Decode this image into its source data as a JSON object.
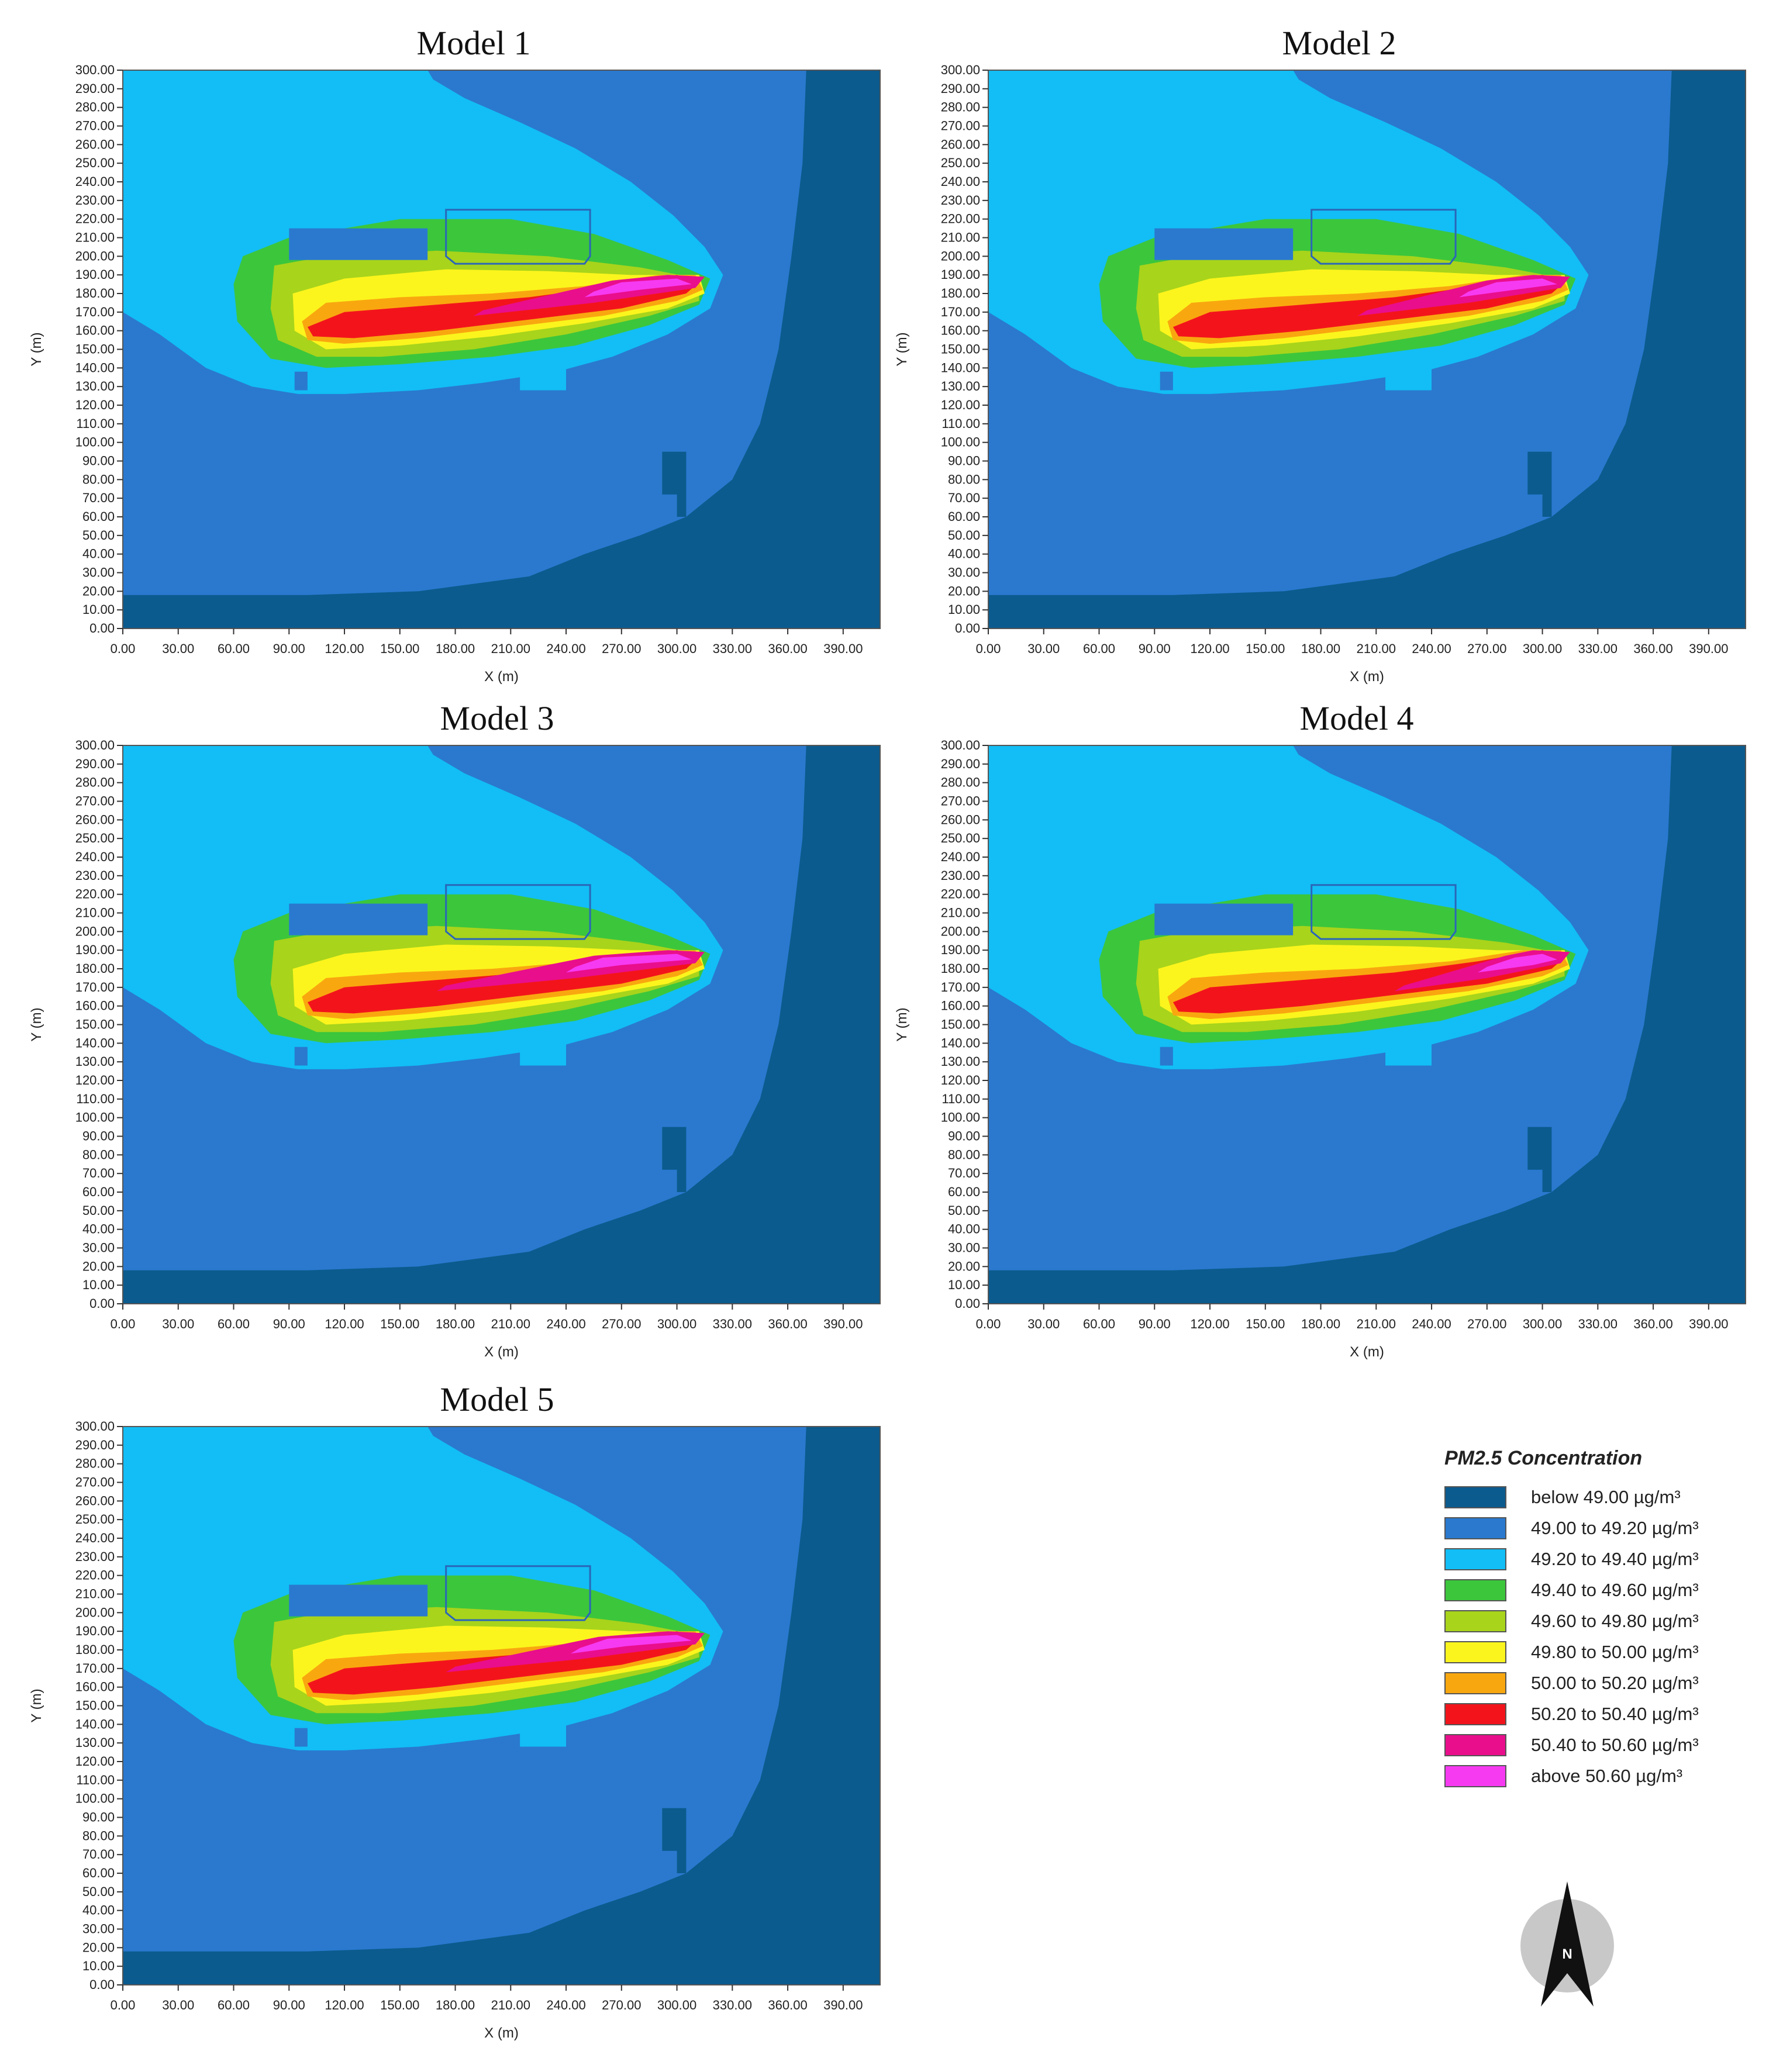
{
  "chart_data": [
    {
      "type": "heatmap",
      "title": "Model 1",
      "xlabel": "X (m)",
      "ylabel": "Y (m)",
      "xlim": [
        0,
        410
      ],
      "ylim": [
        0,
        300
      ],
      "x_ticks": [
        "0.00",
        "30.00",
        "60.00",
        "90.00",
        "120.00",
        "150.00",
        "180.00",
        "210.00",
        "240.00",
        "270.00",
        "300.00",
        "330.00",
        "360.00",
        "390.00"
      ],
      "y_ticks": [
        "0.00",
        "10.00",
        "20.00",
        "30.00",
        "40.00",
        "50.00",
        "60.00",
        "70.00",
        "80.00",
        "90.00",
        "100.00",
        "110.00",
        "120.00",
        "130.00",
        "140.00",
        "150.00",
        "160.00",
        "170.00",
        "180.00",
        "190.00",
        "200.00",
        "210.00",
        "220.00",
        "230.00",
        "240.00",
        "250.00",
        "260.00",
        "270.00",
        "280.00",
        "290.00",
        "300.00"
      ],
      "plume_peak_x": [
        190,
        320
      ]
    },
    {
      "type": "heatmap",
      "title": "Model 2",
      "xlabel": "X (m)",
      "ylabel": "Y (m)",
      "xlim": [
        0,
        410
      ],
      "ylim": [
        0,
        300
      ],
      "x_ticks": [
        "0.00",
        "30.00",
        "60.00",
        "90.00",
        "120.00",
        "150.00",
        "180.00",
        "210.00",
        "240.00",
        "270.00",
        "300.00",
        "330.00",
        "360.00",
        "390.00"
      ],
      "y_ticks": [
        "0.00",
        "10.00",
        "20.00",
        "30.00",
        "40.00",
        "50.00",
        "60.00",
        "70.00",
        "80.00",
        "90.00",
        "100.00",
        "110.00",
        "120.00",
        "130.00",
        "140.00",
        "150.00",
        "160.00",
        "170.00",
        "180.00",
        "190.00",
        "200.00",
        "210.00",
        "220.00",
        "230.00",
        "240.00",
        "250.00",
        "260.00",
        "270.00",
        "280.00",
        "290.00",
        "300.00"
      ],
      "plume_peak_x": [
        200,
        320
      ]
    },
    {
      "type": "heatmap",
      "title": "Model 3",
      "xlabel": "X (m)",
      "ylabel": "Y (m)",
      "xlim": [
        0,
        410
      ],
      "ylim": [
        0,
        300
      ],
      "x_ticks": [
        "0.00",
        "30.00",
        "60.00",
        "90.00",
        "120.00",
        "150.00",
        "180.00",
        "210.00",
        "240.00",
        "270.00",
        "300.00",
        "330.00",
        "360.00",
        "390.00"
      ],
      "y_ticks": [
        "0.00",
        "10.00",
        "20.00",
        "30.00",
        "40.00",
        "50.00",
        "60.00",
        "70.00",
        "80.00",
        "90.00",
        "100.00",
        "110.00",
        "120.00",
        "130.00",
        "140.00",
        "150.00",
        "160.00",
        "170.00",
        "180.00",
        "190.00",
        "200.00",
        "210.00",
        "220.00",
        "230.00",
        "240.00",
        "250.00",
        "260.00",
        "270.00",
        "280.00",
        "290.00",
        "300.00"
      ],
      "plume_peak_x": [
        170,
        320
      ]
    },
    {
      "type": "heatmap",
      "title": "Model 4",
      "xlabel": "X (m)",
      "ylabel": "Y (m)",
      "xlim": [
        0,
        410
      ],
      "ylim": [
        0,
        300
      ],
      "x_ticks": [
        "0.00",
        "30.00",
        "60.00",
        "90.00",
        "120.00",
        "150.00",
        "180.00",
        "210.00",
        "240.00",
        "270.00",
        "300.00",
        "330.00",
        "360.00",
        "390.00"
      ],
      "y_ticks": [
        "0.00",
        "10.00",
        "20.00",
        "30.00",
        "40.00",
        "50.00",
        "60.00",
        "70.00",
        "80.00",
        "90.00",
        "100.00",
        "110.00",
        "120.00",
        "130.00",
        "140.00",
        "150.00",
        "160.00",
        "170.00",
        "180.00",
        "190.00",
        "200.00",
        "210.00",
        "220.00",
        "230.00",
        "240.00",
        "250.00",
        "260.00",
        "270.00",
        "280.00",
        "290.00",
        "300.00"
      ],
      "plume_peak_x": [
        220,
        320
      ]
    },
    {
      "type": "heatmap",
      "title": "Model 5",
      "xlabel": "X (m)",
      "ylabel": "Y (m)",
      "xlim": [
        0,
        410
      ],
      "ylim": [
        0,
        300
      ],
      "x_ticks": [
        "0.00",
        "30.00",
        "60.00",
        "90.00",
        "120.00",
        "150.00",
        "180.00",
        "210.00",
        "240.00",
        "270.00",
        "300.00",
        "330.00",
        "360.00",
        "390.00"
      ],
      "y_ticks": [
        "0.00",
        "10.00",
        "20.00",
        "30.00",
        "40.00",
        "50.00",
        "60.00",
        "70.00",
        "80.00",
        "90.00",
        "100.00",
        "110.00",
        "120.00",
        "130.00",
        "140.00",
        "150.00",
        "160.00",
        "170.00",
        "180.00",
        "190.00",
        "200.00",
        "210.00",
        "220.00",
        "230.00",
        "240.00",
        "250.00",
        "260.00",
        "270.00",
        "280.00",
        "290.00",
        "300.00"
      ],
      "plume_peak_x": [
        175,
        320
      ]
    }
  ],
  "legend": {
    "title": "PM2.5 Concentration",
    "items": [
      {
        "label": "below 49.00 µg/m³",
        "color": "#0b5b8e"
      },
      {
        "label": "49.00 to 49.20 µg/m³",
        "color": "#2a79cf"
      },
      {
        "label": "49.20 to 49.40 µg/m³",
        "color": "#12bef5"
      },
      {
        "label": "49.40 to 49.60 µg/m³",
        "color": "#3cc63c"
      },
      {
        "label": "49.60 to 49.80 µg/m³",
        "color": "#a8d41b"
      },
      {
        "label": "49.80 to 50.00 µg/m³",
        "color": "#fbf51d"
      },
      {
        "label": "50.00 to 50.20 µg/m³",
        "color": "#f9a70f"
      },
      {
        "label": "50.20 to 50.40 µg/m³",
        "color": "#f3141b"
      },
      {
        "label": "50.40 to 50.60 µg/m³",
        "color": "#e90e8c"
      },
      {
        "label": "above 50.60 µg/m³",
        "color": "#f63af2"
      }
    ]
  },
  "north_arrow": {
    "label": "N",
    "icon": "north-arrow-icon"
  }
}
